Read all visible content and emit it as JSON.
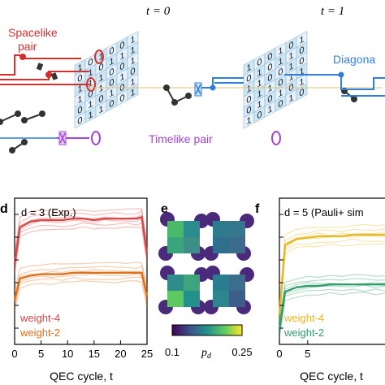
{
  "top": {
    "t0_label": "t = 0",
    "t1_label": "t = 1",
    "spacelike_label": [
      "Spacelike",
      "pair"
    ],
    "timelike_label": "Timelike pair",
    "diagonal_label": "Diagona",
    "colors": {
      "spacelike": "#d62d2d",
      "timelike": "#a444d4",
      "diagonal": "#2f7fdc",
      "grid_fill": "#cfe6f5",
      "grid_line": "#8fb9d8"
    },
    "grid_t0_digits": [
      [
        "1",
        "0",
        "1",
        "0",
        "0",
        "1"
      ],
      [
        "0",
        "1",
        "0",
        "1",
        "1",
        "1"
      ],
      [
        "1",
        "1",
        "1",
        "0",
        "0",
        "1"
      ],
      [
        "1",
        "0",
        "1",
        "0",
        "1",
        "0"
      ],
      [
        "0",
        "1",
        "0",
        "1",
        "0",
        "1"
      ],
      [
        "0",
        "1",
        "1",
        "0",
        "0",
        "1"
      ]
    ],
    "grid_t1_digits": [
      [
        "1",
        "0",
        "0",
        "1",
        "0",
        "1"
      ],
      [
        "0",
        "1",
        "0",
        "1",
        "1",
        "0"
      ],
      [
        "1",
        "1",
        "0",
        "0",
        "1",
        "0"
      ],
      [
        "0",
        "1",
        "1",
        "0",
        "1",
        "1"
      ],
      [
        "0",
        "1",
        "0",
        "1",
        "0",
        "1"
      ],
      [
        "1",
        "0",
        "1",
        "0",
        "1",
        "0"
      ]
    ]
  },
  "panel_d": {
    "letter": "d",
    "annotation": "d = 3 (Exp.)",
    "legend": [
      "weight-4",
      "weight-2"
    ],
    "xlabel": "QEC cycle, t",
    "xticks": [
      "0",
      "5",
      "10",
      "15",
      "20",
      "25"
    ]
  },
  "panel_e": {
    "letter": "e",
    "colorbar_label": "p_d",
    "colorbar_ticks": [
      "0.1",
      "0.25"
    ]
  },
  "panel_f": {
    "letter": "f",
    "annotation": "d = 5 (Pauli+ sim",
    "legend": [
      "weight-4",
      "weight-2"
    ],
    "xlabel": "QEC cycle, t",
    "xticks": [
      "0",
      "5",
      "2"
    ]
  },
  "chart_data": [
    {
      "type": "line",
      "title": "d = 3 (Exp.)",
      "xlabel": "QEC cycle, t",
      "ylabel": "",
      "xlim": [
        0,
        25
      ],
      "ylim": [
        0,
        1
      ],
      "x": [
        0,
        1,
        3,
        5,
        7,
        9,
        11,
        13,
        15,
        17,
        19,
        21,
        23,
        24,
        25
      ],
      "series": [
        {
          "name": "weight-4",
          "color": "#d94848",
          "values": [
            0.55,
            0.8,
            0.84,
            0.85,
            0.85,
            0.85,
            0.86,
            0.86,
            0.85,
            0.86,
            0.86,
            0.86,
            0.86,
            0.87,
            0.62
          ]
        },
        {
          "name": "weight-2",
          "color": "#e0701a",
          "values": [
            0.3,
            0.45,
            0.47,
            0.48,
            0.48,
            0.48,
            0.49,
            0.49,
            0.49,
            0.49,
            0.49,
            0.49,
            0.49,
            0.49,
            0.33
          ]
        }
      ]
    },
    {
      "type": "line",
      "title": "d = 5 (Pauli+ sim",
      "xlabel": "QEC cycle, t",
      "ylabel": "",
      "xlim": [
        0,
        25
      ],
      "ylim": [
        0,
        1
      ],
      "x": [
        0,
        1,
        3,
        5,
        7,
        9,
        11,
        13,
        15,
        17,
        19,
        21
      ],
      "series": [
        {
          "name": "weight-4",
          "color": "#e8b820",
          "values": [
            0.2,
            0.68,
            0.72,
            0.73,
            0.74,
            0.74,
            0.74,
            0.75,
            0.75,
            0.75,
            0.75,
            0.75
          ]
        },
        {
          "name": "weight-2",
          "color": "#2e9e6a",
          "values": [
            0.1,
            0.36,
            0.39,
            0.4,
            0.4,
            0.41,
            0.41,
            0.41,
            0.41,
            0.41,
            0.41,
            0.41
          ]
        }
      ]
    },
    {
      "type": "heatmap",
      "colorbar_label": "p_d",
      "colorbar_range": [
        0.1,
        0.25
      ],
      "colorbar_ticks": [
        "0.1",
        "0.25"
      ]
    }
  ]
}
